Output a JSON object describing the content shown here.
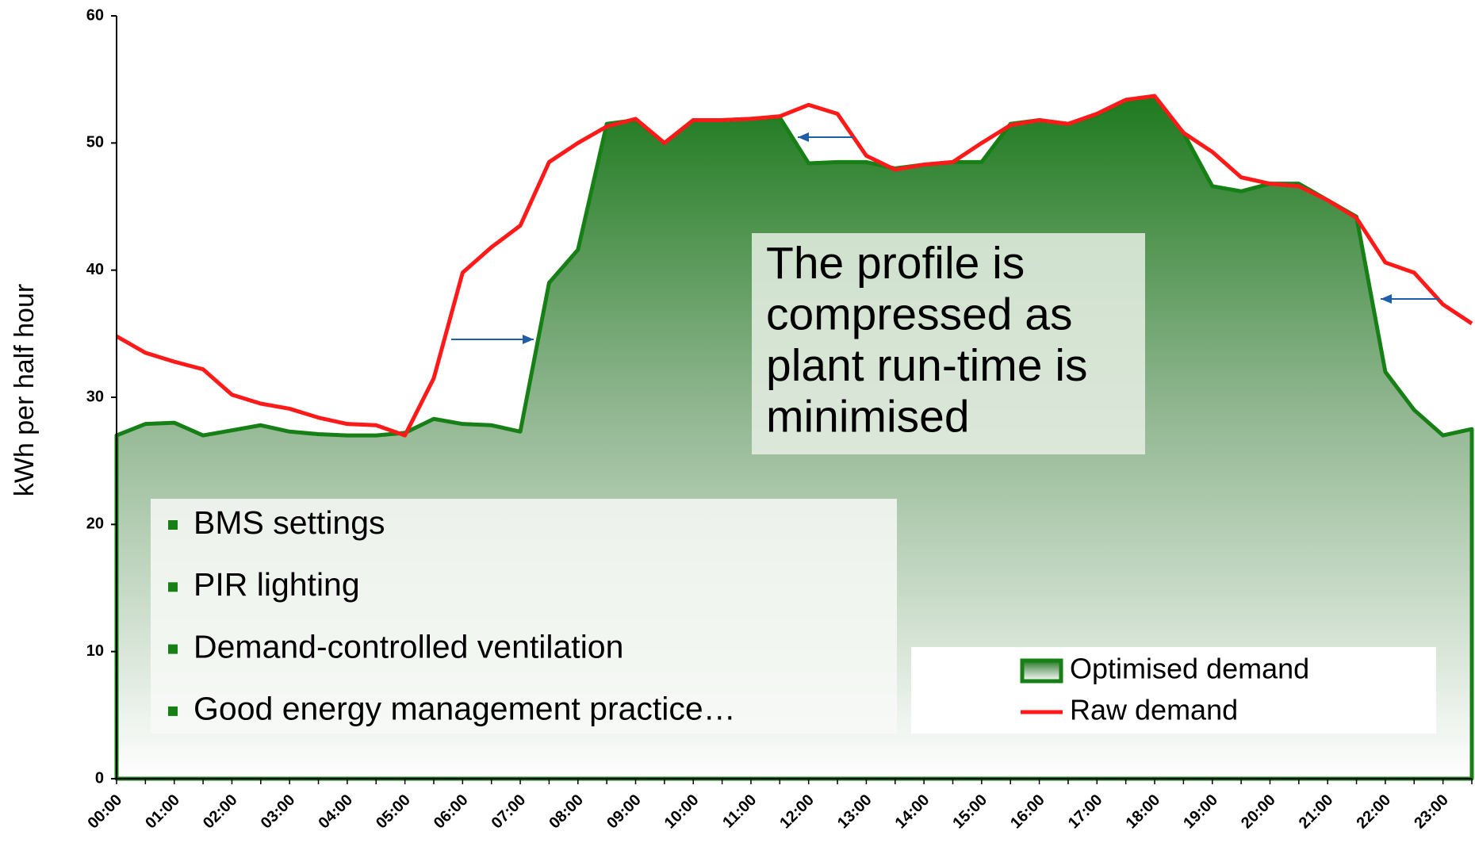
{
  "chart_data": {
    "type": "area_line",
    "ylabel": "kWh per half hour",
    "categories": [
      "00:00",
      null,
      "01:00",
      null,
      "02:00",
      null,
      "03:00",
      null,
      "04:00",
      null,
      "05:00",
      null,
      "06:00",
      null,
      "07:00",
      null,
      "08:00",
      null,
      "09:00",
      null,
      "10:00",
      null,
      "11:00",
      null,
      "12:00",
      null,
      "13:00",
      null,
      "14:00",
      null,
      "15:00",
      null,
      "16:00",
      null,
      "17:00",
      null,
      "18:00",
      null,
      "19:00",
      null,
      "20:00",
      null,
      "21:00",
      null,
      "22:00",
      null,
      "23:00",
      null
    ],
    "series": [
      {
        "name": "Optimised demand",
        "color": "#168016",
        "values": [
          27.0,
          27.9,
          28.0,
          27.0,
          27.4,
          27.8,
          27.3,
          27.1,
          27.0,
          27.0,
          27.2,
          28.3,
          27.9,
          27.8,
          27.3,
          39.0,
          41.6,
          51.5,
          51.8,
          50.0,
          51.8,
          51.8,
          51.9,
          52.0,
          48.4,
          48.5,
          48.5,
          48.0,
          48.3,
          48.5,
          48.5,
          51.5,
          51.8,
          51.5,
          52.2,
          53.3,
          53.6,
          50.8,
          46.6,
          46.2,
          46.8,
          46.8,
          45.5,
          44.2,
          32.0,
          29.0,
          27.0,
          27.5
        ]
      },
      {
        "name": "Raw demand",
        "color": "#ff1a1a",
        "values": [
          34.8,
          33.5,
          32.8,
          32.2,
          30.2,
          29.5,
          29.1,
          28.4,
          27.9,
          27.8,
          27.0,
          31.5,
          39.8,
          41.8,
          43.5,
          48.5,
          50.0,
          51.3,
          51.9,
          50.0,
          51.8,
          51.8,
          51.9,
          52.1,
          53.0,
          52.3,
          49.0,
          47.9,
          48.3,
          48.5,
          50.0,
          51.4,
          51.8,
          51.5,
          52.3,
          53.4,
          53.7,
          50.8,
          49.3,
          47.3,
          46.8,
          46.6,
          45.5,
          44.1,
          40.6,
          39.8,
          37.3,
          35.8
        ]
      }
    ],
    "ylim": [
      0,
      60
    ],
    "yticks": [
      0,
      10,
      20,
      30,
      40,
      50,
      60
    ],
    "annotation": [
      "The profile is",
      "compressed as",
      "plant run-time is",
      "minimised"
    ],
    "bullets": [
      "BMS settings",
      "PIR lighting",
      "Demand-controlled ventilation",
      "Good energy management practice…"
    ]
  }
}
